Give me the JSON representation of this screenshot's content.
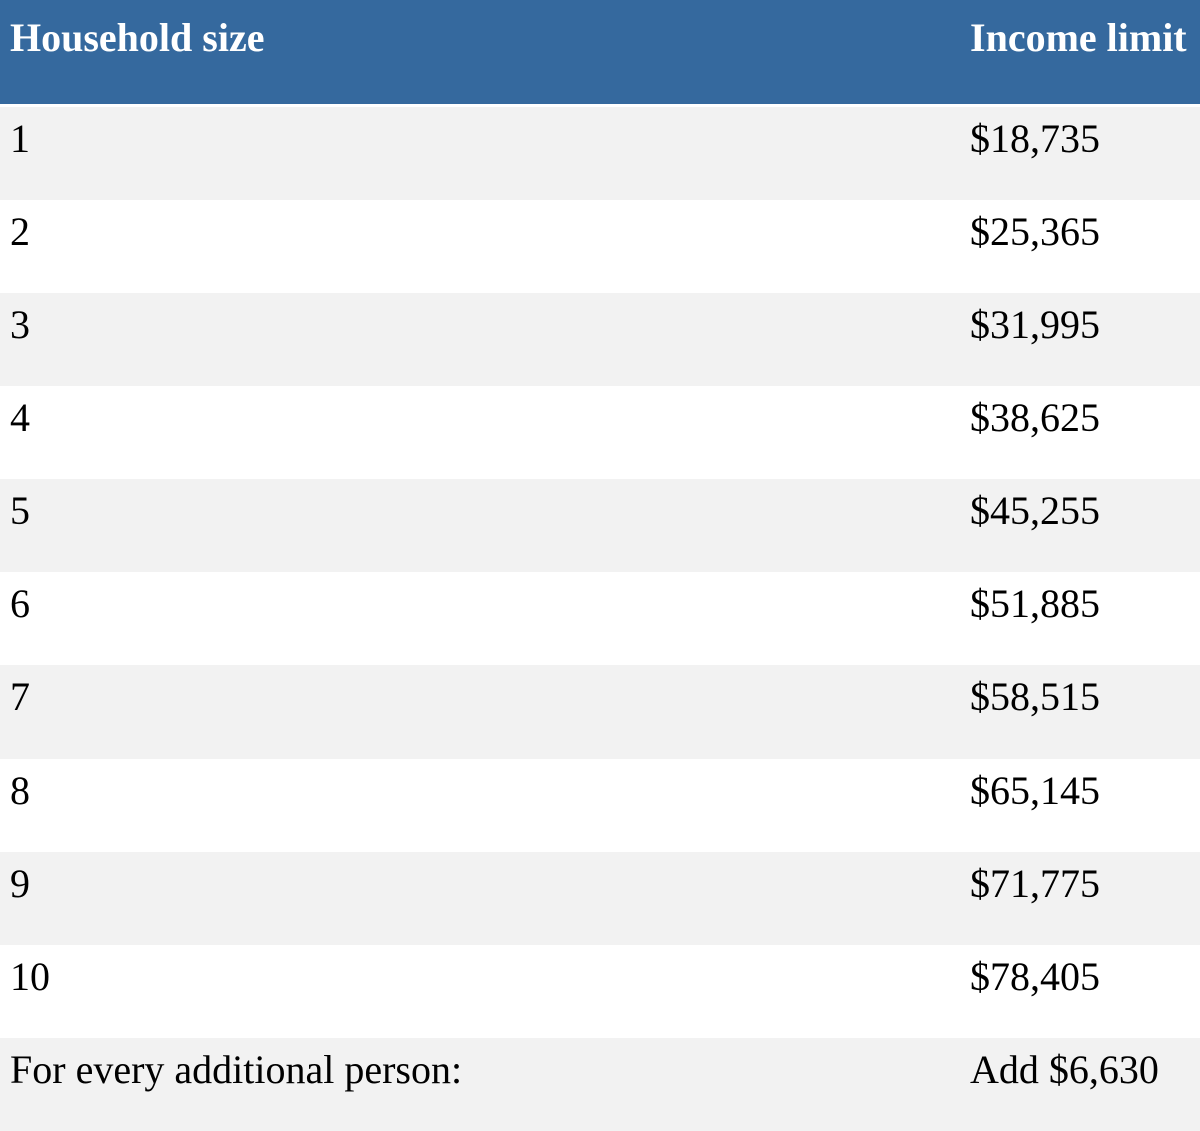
{
  "table": {
    "columns": [
      {
        "label": "Household size"
      },
      {
        "label": "Income limit"
      }
    ],
    "rows": [
      {
        "household_size": "1",
        "income_limit": "$18,735"
      },
      {
        "household_size": "2",
        "income_limit": "$25,365"
      },
      {
        "household_size": "3",
        "income_limit": "$31,995"
      },
      {
        "household_size": "4",
        "income_limit": "$38,625"
      },
      {
        "household_size": "5",
        "income_limit": "$45,255"
      },
      {
        "household_size": "6",
        "income_limit": "$51,885"
      },
      {
        "household_size": "7",
        "income_limit": "$58,515"
      },
      {
        "household_size": "8",
        "income_limit": "$65,145"
      },
      {
        "household_size": "9",
        "income_limit": "$71,775"
      },
      {
        "household_size": "10",
        "income_limit": "$78,405"
      },
      {
        "household_size": "For every additional person:",
        "income_limit": "Add $6,630"
      }
    ]
  },
  "colors": {
    "header_bg": "#35699e",
    "header_text": "#ffffff",
    "row_stripe_bg": "#f2f2f2",
    "row_bg": "#ffffff",
    "body_text": "#000000",
    "header_border_bottom": "#ffffff"
  }
}
